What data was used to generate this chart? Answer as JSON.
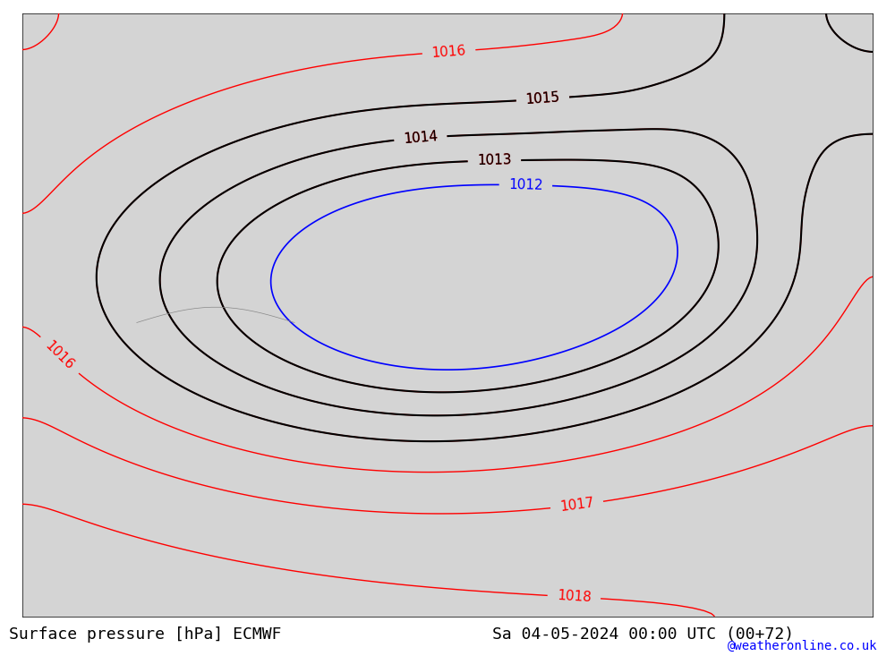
{
  "title_left": "Surface pressure [hPa] ECMWF",
  "title_right": "Sa 04-05-2024 00:00 UTC (00+72)",
  "watermark": "@weatheronline.co.uk",
  "bg_land_color": "#ccffaa",
  "bg_sea_color": "#d4d4d4",
  "border_color": "#888888",
  "contour_red_color": "#ff0000",
  "contour_black_color": "#000000",
  "contour_blue_color": "#0000ff",
  "label_fontsize": 11,
  "title_fontsize": 13,
  "figsize": [
    10.0,
    7.33
  ],
  "dpi": 100,
  "lon_min": -5.5,
  "lon_max": 22.0,
  "lat_min": 33.0,
  "lat_max": 52.5
}
